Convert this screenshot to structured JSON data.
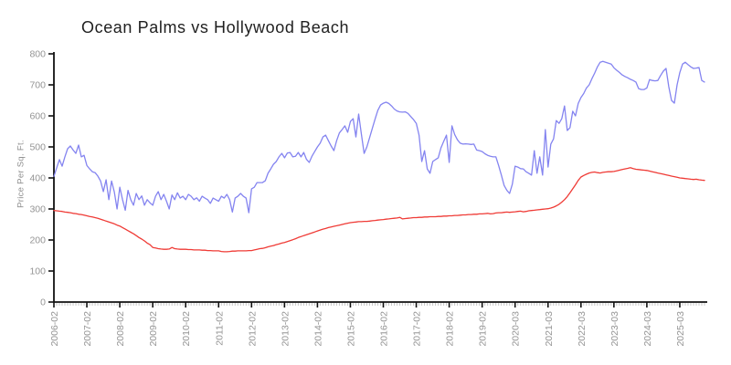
{
  "title": "Ocean Palms vs Hollywood Beach",
  "chart_data": {
    "type": "line",
    "title": "Ocean Palms vs Hollywood Beach",
    "xlabel": "",
    "ylabel": "Price Per Sq. Ft.",
    "ylim": [
      0,
      800
    ],
    "y_ticks": [
      0,
      100,
      200,
      300,
      400,
      500,
      600,
      700,
      800
    ],
    "grid": false,
    "legend_position": "none",
    "x_unit": "month",
    "x_tick_every": 12,
    "x_tick_labels": [
      "2006-02",
      "2007-02",
      "2008-02",
      "2009-02",
      "2010-02",
      "2011-02",
      "2012-02",
      "2013-02",
      "2014-02",
      "2015-02",
      "2016-02",
      "2017-02",
      "2018-02",
      "2019-02",
      "2020-03",
      "2021-03",
      "2022-03",
      "2023-03",
      "2024-03",
      "2025-03"
    ],
    "axis_color": "#111111",
    "minor_tick_color": "#c8c8c8",
    "tick_label_color": "#949494",
    "series": [
      {
        "name": "Ocean Palms",
        "color": "#8484f0",
        "values": [
          405,
          432,
          459,
          438,
          468,
          494,
          503,
          490,
          479,
          506,
          468,
          473,
          440,
          429,
          420,
          417,
          406,
          390,
          356,
          394,
          330,
          390,
          355,
          300,
          370,
          330,
          296,
          360,
          330,
          312,
          350,
          330,
          342,
          312,
          330,
          320,
          312,
          341,
          356,
          330,
          347,
          325,
          300,
          345,
          330,
          352,
          335,
          341,
          330,
          347,
          341,
          330,
          336,
          325,
          341,
          335,
          330,
          318,
          335,
          330,
          325,
          341,
          335,
          347,
          330,
          290,
          335,
          341,
          350,
          341,
          335,
          288,
          365,
          370,
          385,
          385,
          385,
          391,
          415,
          429,
          444,
          453,
          468,
          479,
          465,
          480,
          482,
          468,
          470,
          482,
          468,
          482,
          460,
          450,
          470,
          485,
          500,
          512,
          532,
          538,
          520,
          503,
          488,
          520,
          545,
          556,
          568,
          547,
          582,
          591,
          532,
          606,
          541,
          479,
          500,
          530,
          560,
          590,
          618,
          635,
          641,
          644,
          640,
          632,
          622,
          616,
          613,
          612,
          613,
          608,
          598,
          588,
          576,
          538,
          453,
          488,
          429,
          415,
          453,
          459,
          465,
          497,
          518,
          538,
          450,
          568,
          540,
          523,
          512,
          509,
          510,
          509,
          508,
          509,
          490,
          488,
          485,
          478,
          473,
          470,
          468,
          468,
          440,
          409,
          376,
          360,
          350,
          380,
          438,
          435,
          430,
          429,
          420,
          415,
          409,
          488,
          415,
          468,
          409,
          556,
          435,
          509,
          526,
          585,
          576,
          591,
          632,
          553,
          562,
          615,
          600,
          640,
          659,
          672,
          690,
          700,
          720,
          738,
          758,
          773,
          776,
          773,
          770,
          767,
          755,
          747,
          740,
          732,
          727,
          723,
          718,
          714,
          709,
          688,
          685,
          685,
          690,
          717,
          714,
          713,
          714,
          730,
          744,
          753,
          694,
          650,
          641,
          700,
          740,
          767,
          773,
          765,
          758,
          753,
          754,
          756,
          714,
          709
        ]
      },
      {
        "name": "Hollywood Beach",
        "color": "#ef3b36",
        "values": [
          295,
          294,
          293,
          292,
          290,
          289,
          288,
          286,
          285,
          283,
          282,
          280,
          278,
          276,
          274,
          272,
          270,
          267,
          264,
          261,
          258,
          255,
          252,
          248,
          245,
          240,
          235,
          230,
          225,
          220,
          214,
          208,
          203,
          197,
          190,
          185,
          176,
          174,
          172,
          171,
          170,
          170,
          171,
          176,
          172,
          171,
          170,
          170,
          170,
          169,
          169,
          168,
          168,
          168,
          167,
          167,
          166,
          166,
          165,
          165,
          165,
          163,
          162,
          162,
          163,
          164,
          164,
          165,
          165,
          165,
          165,
          166,
          166,
          168,
          170,
          172,
          173,
          175,
          178,
          180,
          182,
          185,
          187,
          190,
          192,
          195,
          198,
          201,
          204,
          208,
          211,
          214,
          217,
          220,
          223,
          226,
          229,
          232,
          235,
          237,
          240,
          242,
          244,
          246,
          248,
          250,
          252,
          254,
          256,
          257,
          258,
          259,
          259,
          260,
          260,
          261,
          262,
          263,
          264,
          265,
          266,
          267,
          268,
          269,
          270,
          271,
          273,
          268,
          269,
          270,
          271,
          272,
          272,
          273,
          273,
          274,
          274,
          275,
          275,
          275,
          276,
          276,
          277,
          277,
          278,
          278,
          279,
          279,
          280,
          281,
          281,
          282,
          282,
          283,
          283,
          284,
          284,
          285,
          286,
          284,
          285,
          287,
          288,
          288,
          289,
          290,
          289,
          290,
          291,
          292,
          293,
          291,
          292,
          294,
          295,
          296,
          297,
          298,
          299,
          300,
          301,
          303,
          306,
          310,
          315,
          322,
          330,
          340,
          352,
          365,
          378,
          392,
          403,
          408,
          412,
          416,
          418,
          419,
          417,
          416,
          418,
          419,
          420,
          420,
          421,
          423,
          425,
          427,
          429,
          431,
          433,
          430,
          428,
          427,
          426,
          425,
          424,
          422,
          420,
          418,
          416,
          414,
          412,
          410,
          408,
          406,
          404,
          402,
          400,
          399,
          398,
          397,
          396,
          395,
          396,
          394,
          393,
          392
        ]
      }
    ]
  }
}
